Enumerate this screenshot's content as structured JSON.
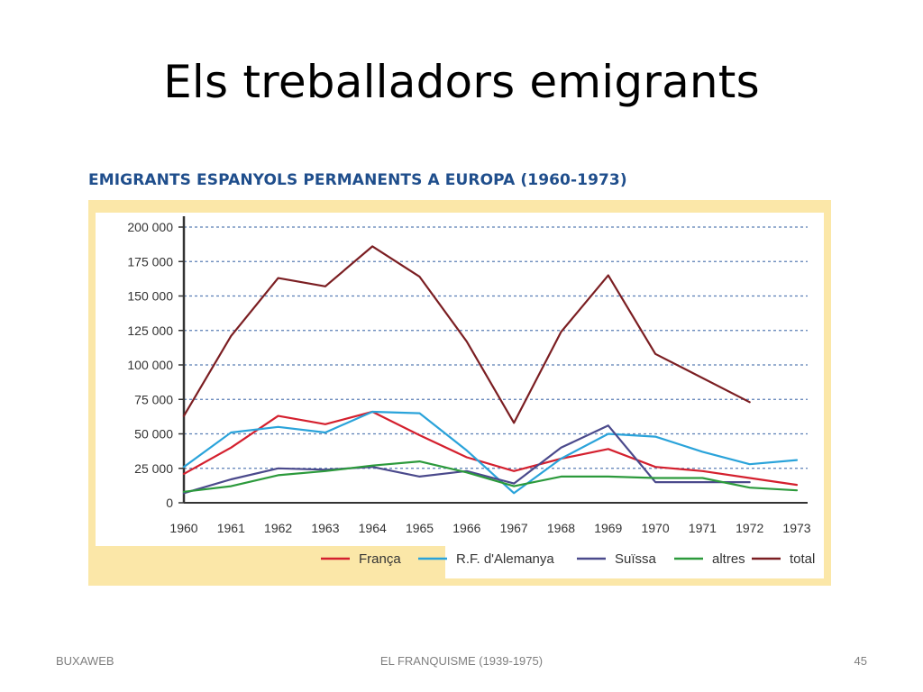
{
  "slide": {
    "title": "Els treballadors emigrants",
    "footer_left": "BUXAWEB",
    "footer_center": "EL FRANQUISME (1939-1975)",
    "footer_right": "45"
  },
  "colors": {
    "frame": "#fbe7a8",
    "plot_bg": "#ffffff",
    "grid": "#5b7fb5",
    "title": "#1f4e8c"
  },
  "chart_data": {
    "type": "line",
    "title": "EMIGRANTS ESPANYOLS PERMANENTS A EUROPA (1960-1973)",
    "xlabel": "",
    "ylabel": "",
    "x": [
      "1960",
      "1961",
      "1962",
      "1963",
      "1964",
      "1965",
      "1966",
      "1967",
      "1968",
      "1969",
      "1970",
      "1971",
      "1972",
      "1973"
    ],
    "ylim": [
      0,
      200000
    ],
    "yticks": [
      0,
      25000,
      50000,
      75000,
      100000,
      125000,
      150000,
      175000,
      200000
    ],
    "ytick_labels": [
      "0",
      "25 000",
      "50 000",
      "75 000",
      "100 000",
      "125 000",
      "150 000",
      "175 000",
      "200 000"
    ],
    "grid": "horizontal dashed",
    "legend_position": "bottom",
    "series": [
      {
        "name": "França",
        "color": "#d4202e",
        "values": [
          21000,
          40000,
          63000,
          57000,
          66000,
          49000,
          33000,
          23000,
          32000,
          39000,
          26000,
          23000,
          18000,
          13000
        ]
      },
      {
        "name": "R.F. d'Alemanya",
        "color": "#2aa3da",
        "values": [
          26000,
          51000,
          55000,
          51000,
          66000,
          65000,
          38000,
          7000,
          32000,
          50000,
          48000,
          37000,
          28000,
          31000
        ]
      },
      {
        "name": "Suïssa",
        "color": "#4b4a8c",
        "values": [
          7000,
          17000,
          25000,
          24000,
          26000,
          19000,
          23000,
          14000,
          40000,
          56000,
          15000,
          15000,
          15000,
          null
        ]
      },
      {
        "name": "altres",
        "color": "#2c9a3c",
        "values": [
          8000,
          12000,
          20000,
          23000,
          27000,
          30000,
          22000,
          12000,
          19000,
          19000,
          18000,
          18000,
          11000,
          9000
        ]
      },
      {
        "name": "total",
        "color": "#7b1e22",
        "values": [
          63000,
          121000,
          163000,
          157000,
          186000,
          164000,
          117000,
          58000,
          124000,
          165000,
          108000,
          null,
          73000,
          null
        ]
      }
    ]
  }
}
